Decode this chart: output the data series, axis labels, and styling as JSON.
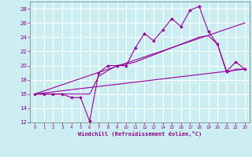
{
  "xlabel": "Windchill (Refroidissement éolien,°C)",
  "bg_color": "#cceef2",
  "grid_color": "#ffffff",
  "line_color": "#990099",
  "xlim": [
    -0.5,
    23.5
  ],
  "ylim": [
    12,
    29
  ],
  "yticks": [
    12,
    14,
    16,
    18,
    20,
    22,
    24,
    26,
    28
  ],
  "xticks": [
    0,
    1,
    2,
    3,
    4,
    5,
    6,
    7,
    8,
    9,
    10,
    11,
    12,
    13,
    14,
    15,
    16,
    17,
    18,
    19,
    20,
    21,
    22,
    23
  ],
  "lines": [
    {
      "x": [
        0,
        1,
        2,
        3,
        4,
        5,
        6,
        7,
        8,
        9,
        10,
        11,
        12,
        13,
        14,
        15,
        16,
        17,
        18,
        19,
        20,
        21,
        22,
        23
      ],
      "y": [
        16,
        16,
        16,
        16,
        15.5,
        15.5,
        12.2,
        19.0,
        20.0,
        20.0,
        20.0,
        22.5,
        24.5,
        23.5,
        25.0,
        26.6,
        25.5,
        27.8,
        28.3,
        24.8,
        23.0,
        19.2,
        20.5,
        19.5
      ],
      "marker": "D",
      "markersize": 2,
      "linewidth": 0.8,
      "zorder": 3
    },
    {
      "x": [
        0,
        6,
        7,
        8,
        9,
        10,
        11,
        12,
        13,
        14,
        15,
        16,
        17,
        18,
        19,
        20,
        21,
        22,
        23
      ],
      "y": [
        16,
        16,
        18.5,
        19.3,
        20.0,
        20.2,
        20.5,
        21.0,
        21.5,
        22.0,
        22.5,
        23.0,
        23.5,
        24.0,
        24.2,
        23.0,
        19.0,
        19.5,
        19.5
      ],
      "marker": "None",
      "markersize": 0,
      "linewidth": 0.8,
      "zorder": 2
    },
    {
      "x": [
        0,
        23
      ],
      "y": [
        16,
        19.5
      ],
      "marker": "None",
      "markersize": 0,
      "linewidth": 0.8,
      "zorder": 2
    },
    {
      "x": [
        0,
        23
      ],
      "y": [
        16,
        26.0
      ],
      "marker": "None",
      "markersize": 0,
      "linewidth": 0.8,
      "zorder": 2
    }
  ]
}
